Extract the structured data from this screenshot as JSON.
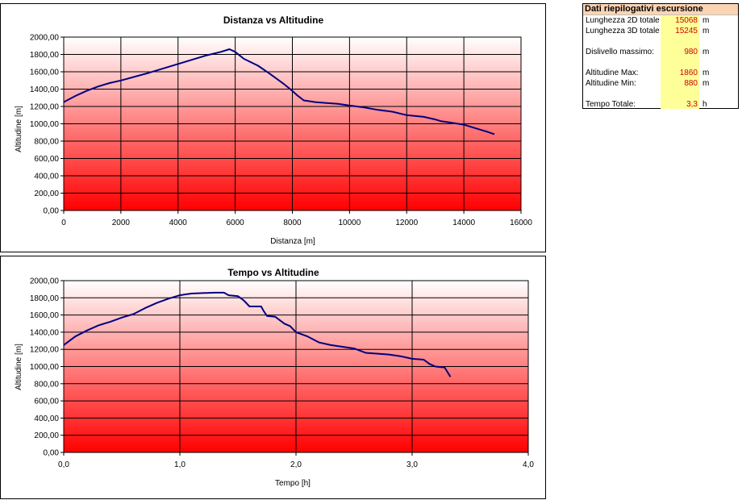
{
  "charts": [
    {
      "id": "chart1",
      "title": "Distanza vs Altitudine",
      "xlabel": "Distanza [m]",
      "ylabel": "Altitudine [m]",
      "xlim": [
        0,
        16000
      ],
      "ylim": [
        0,
        2000
      ],
      "xticks": [
        "0",
        "2000",
        "4000",
        "6000",
        "8000",
        "10000",
        "12000",
        "14000",
        "16000"
      ],
      "yticks": [
        "0,00",
        "200,00",
        "400,00",
        "600,00",
        "800,00",
        "1000,00",
        "1200,00",
        "1400,00",
        "1600,00",
        "1800,00",
        "2000,00"
      ]
    },
    {
      "id": "chart2",
      "title": "Tempo vs Altitudine",
      "xlabel": "Tempo [h]",
      "ylabel": "Altitudine [m]",
      "xlim": [
        0,
        4
      ],
      "ylim": [
        0,
        2000
      ],
      "xticks": [
        "0,0",
        "1,0",
        "2,0",
        "3,0",
        "4,0"
      ],
      "yticks": [
        "0,00",
        "200,00",
        "400,00",
        "600,00",
        "800,00",
        "1000,00",
        "1200,00",
        "1400,00",
        "1600,00",
        "1800,00",
        "2000,00"
      ]
    }
  ],
  "chart_data": [
    {
      "type": "line",
      "title": "Distanza vs Altitudine",
      "xlabel": "Distanza [m]",
      "ylabel": "Altitudine [m]",
      "xlim": [
        0,
        16000
      ],
      "ylim": [
        0,
        2000
      ],
      "grid": true,
      "line_color": "#000080",
      "series": [
        {
          "x": [
            0,
            400,
            800,
            1200,
            1600,
            2000,
            3000,
            4000,
            5000,
            5500,
            5800,
            6000,
            6300,
            6800,
            7200,
            7700,
            8000,
            8200,
            8400,
            8800,
            9200,
            9600,
            10000,
            10500,
            11000,
            11500,
            12000,
            12600,
            13000,
            13200,
            13600,
            14000,
            14400,
            14800,
            15068
          ],
          "y": [
            1250,
            1320,
            1380,
            1430,
            1470,
            1500,
            1590,
            1690,
            1790,
            1830,
            1860,
            1830,
            1750,
            1670,
            1580,
            1460,
            1380,
            1320,
            1270,
            1250,
            1240,
            1230,
            1210,
            1190,
            1160,
            1140,
            1100,
            1080,
            1050,
            1030,
            1010,
            990,
            950,
            910,
            880
          ]
        }
      ]
    },
    {
      "type": "line",
      "title": "Tempo vs Altitudine",
      "xlabel": "Tempo [h]",
      "ylabel": "Altitudine [m]",
      "xlim": [
        0,
        4
      ],
      "ylim": [
        0,
        2000
      ],
      "grid": true,
      "line_color": "#000080",
      "series": [
        {
          "x": [
            0,
            0.1,
            0.2,
            0.3,
            0.4,
            0.5,
            0.6,
            0.7,
            0.8,
            0.9,
            1.0,
            1.05,
            1.1,
            1.2,
            1.3,
            1.38,
            1.42,
            1.5,
            1.55,
            1.6,
            1.7,
            1.72,
            1.75,
            1.82,
            1.9,
            1.95,
            2.0,
            2.1,
            2.2,
            2.3,
            2.5,
            2.6,
            2.8,
            2.9,
            3.0,
            3.1,
            3.15,
            3.2,
            3.28,
            3.33
          ],
          "y": [
            1250,
            1350,
            1420,
            1480,
            1520,
            1570,
            1610,
            1680,
            1740,
            1790,
            1830,
            1840,
            1850,
            1855,
            1860,
            1860,
            1830,
            1820,
            1770,
            1700,
            1700,
            1650,
            1590,
            1580,
            1500,
            1470,
            1400,
            1350,
            1280,
            1250,
            1210,
            1160,
            1140,
            1120,
            1090,
            1080,
            1030,
            1000,
            990,
            880
          ]
        }
      ]
    }
  ],
  "summary": {
    "header": "Dati riepilogativi escursione",
    "rows": [
      {
        "label": "Lunghezza 2D totale",
        "value": "15068",
        "unit": "m"
      },
      {
        "label": "Lunghezza 3D totale",
        "value": "15245",
        "unit": "m"
      },
      {
        "label": "Dislivello massimo:",
        "value": "980",
        "unit": "m"
      },
      {
        "label": "Altitudine Max:",
        "value": "1860",
        "unit": "m"
      },
      {
        "label": "Altitudine Min:",
        "value": "880",
        "unit": "m"
      },
      {
        "label": "Tempo Totale:",
        "value": "3,3",
        "unit": "h"
      }
    ]
  },
  "colors": {
    "plot_top": "#ffffff",
    "plot_bottom": "#ff0000",
    "grid": "#000000",
    "line": "#000080",
    "header_bg": "#fbd4b4",
    "value_bg": "#ffff99",
    "value_text": "#cc0000"
  }
}
